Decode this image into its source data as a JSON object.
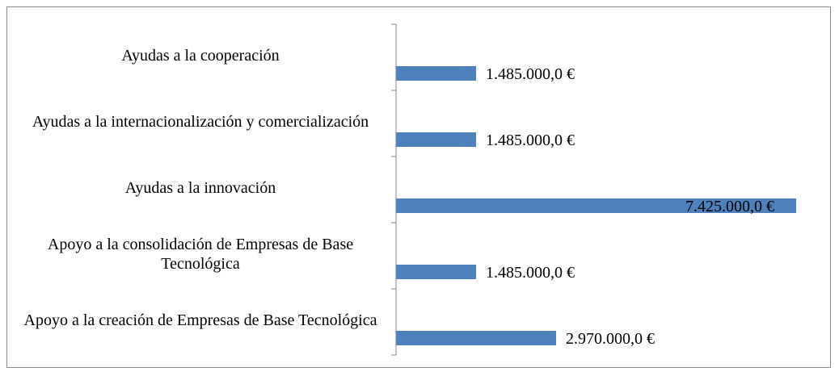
{
  "chart_data": {
    "type": "barh",
    "categories": [
      "Ayudas a la cooperación",
      "Ayudas a la internacionalización y comercialización",
      "Ayudas a la innovación",
      "Apoyo a la consolidación de Empresas de Base Tecnológica",
      "Apoyo a la creación de Empresas de Base Tecnológica"
    ],
    "values": [
      1485000,
      1485000,
      7425000,
      1485000,
      2970000
    ],
    "value_labels": [
      "1.485.000,0 €",
      "1.485.000,0 €",
      "7.425.000,0 €",
      "1.485.000,0 €",
      "2.970.000,0 €"
    ],
    "color": "#4f81bd",
    "xlim": [
      0,
      7425000
    ]
  }
}
